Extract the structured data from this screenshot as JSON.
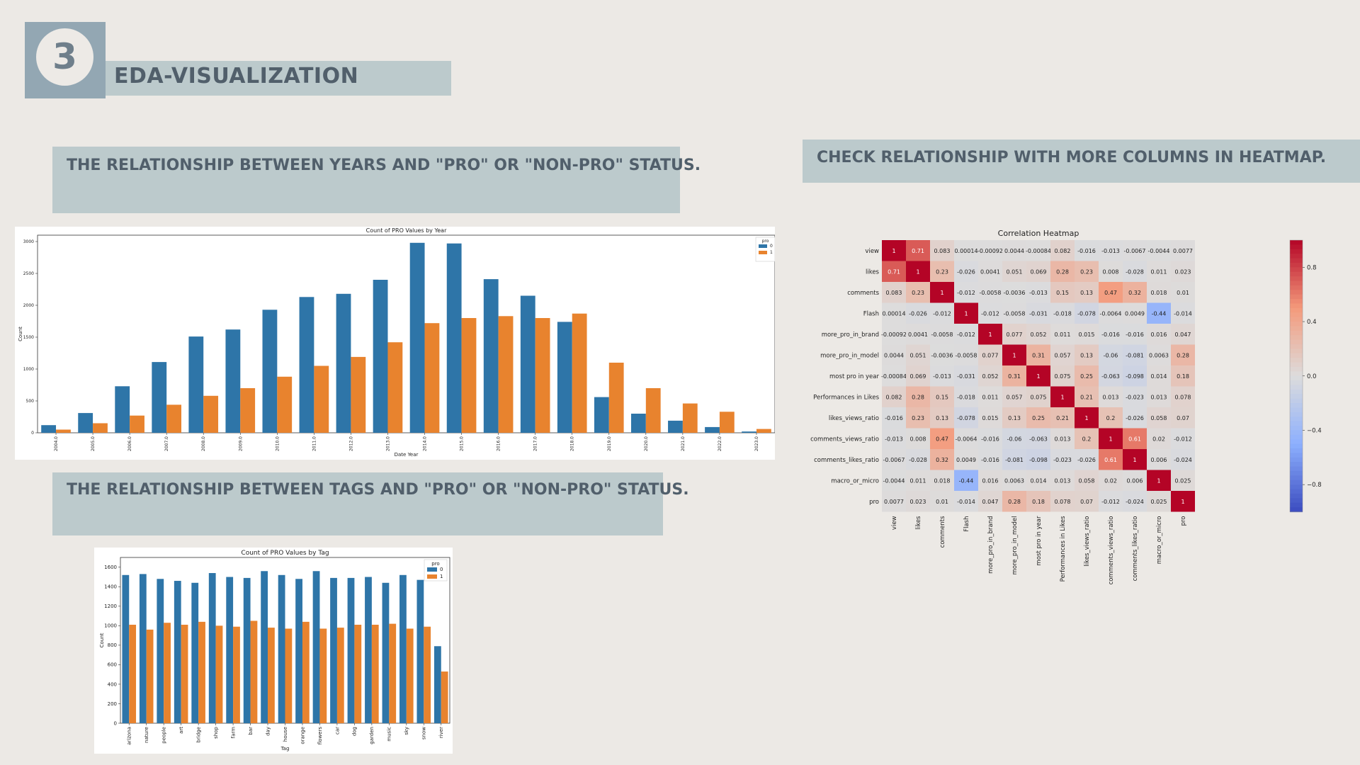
{
  "slide": {
    "section_number": "3",
    "title": "EDA-VISUALIZATION",
    "heading_years": "THE RELATIONSHIP BETWEEN YEARS AND \"PRO\" OR \"NON-PRO\" STATUS.",
    "heading_tags": "THE RELATIONSHIP BETWEEN TAGS AND \"PRO\" OR \"NON-PRO\" STATUS.",
    "heading_heatmap": "CHECK RELATIONSHIP  WITH MORE COLUMNS  IN HEATMAP."
  },
  "colors": {
    "pro_0": "#2e75a8",
    "pro_1": "#e8832e"
  },
  "chart_data": [
    {
      "type": "bar",
      "title": "Count of PRO Values by Year",
      "xlabel": "Date Year",
      "ylabel": "Count",
      "ylim": [
        0,
        3100
      ],
      "yticks": [
        0,
        500,
        1000,
        1500,
        2000,
        2500,
        3000
      ],
      "legend": {
        "title": "pro",
        "placement": "top-right"
      },
      "categories": [
        "2004.0",
        "2005.0",
        "2006.0",
        "2007.0",
        "2008.0",
        "2009.0",
        "2010.0",
        "2011.0",
        "2012.0",
        "2013.0",
        "2014.0",
        "2015.0",
        "2016.0",
        "2017.0",
        "2018.0",
        "2019.0",
        "2020.0",
        "2021.0",
        "2022.0",
        "2023.0"
      ],
      "series": [
        {
          "name": "0",
          "values": [
            120,
            310,
            730,
            1110,
            1510,
            1620,
            1930,
            2130,
            2180,
            2400,
            2980,
            2970,
            2410,
            2150,
            1740,
            560,
            300,
            190,
            90,
            20
          ]
        },
        {
          "name": "1",
          "values": [
            50,
            150,
            270,
            440,
            580,
            700,
            880,
            1050,
            1190,
            1420,
            1720,
            1800,
            1830,
            1800,
            1870,
            1100,
            700,
            460,
            330,
            60
          ]
        }
      ]
    },
    {
      "type": "bar",
      "title": "Count of PRO Values by Tag",
      "xlabel": "Tag",
      "ylabel": "Count",
      "ylim": [
        0,
        1700
      ],
      "yticks": [
        0,
        200,
        400,
        600,
        800,
        1000,
        1200,
        1400,
        1600
      ],
      "legend": {
        "title": "pro",
        "placement": "top-right"
      },
      "categories": [
        "arizona",
        "nature",
        "people",
        "art",
        "bridge",
        "shop",
        "farm",
        "bar",
        "day",
        "house",
        "orange",
        "flowers",
        "car",
        "dog",
        "garden",
        "music",
        "sky",
        "snow",
        "river"
      ],
      "series": [
        {
          "name": "0",
          "values": [
            1520,
            1530,
            1480,
            1460,
            1440,
            1540,
            1500,
            1490,
            1560,
            1520,
            1480,
            1560,
            1490,
            1490,
            1500,
            1440,
            1520,
            1470,
            790
          ]
        },
        {
          "name": "1",
          "values": [
            1010,
            960,
            1030,
            1010,
            1040,
            1000,
            990,
            1050,
            980,
            970,
            1040,
            970,
            980,
            1010,
            1010,
            1020,
            970,
            990,
            530
          ]
        }
      ]
    },
    {
      "type": "heatmap",
      "title": "Correlation Heatmap",
      "labels": [
        "view",
        "likes",
        "comments",
        "Flash",
        "more_pro_in_brand",
        "more_pro_in_model",
        "most pro in year",
        "Performances in Likes",
        "likes_views_ratio",
        "comments_views_ratio",
        "comments_likes_ratio",
        "macro_or_micro",
        "pro"
      ],
      "matrix": [
        [
          1,
          0.71,
          0.083,
          0.00014,
          -0.00092,
          0.0044,
          -0.00084,
          0.082,
          -0.016,
          -0.013,
          -0.0067,
          -0.0044,
          0.0077
        ],
        [
          0.71,
          1,
          0.23,
          -0.026,
          0.0041,
          0.051,
          0.069,
          0.28,
          0.23,
          0.008,
          -0.028,
          0.011,
          0.023
        ],
        [
          0.083,
          0.23,
          1,
          -0.012,
          -0.0058,
          -0.0036,
          -0.013,
          0.15,
          0.13,
          0.47,
          0.32,
          0.018,
          0.01
        ],
        [
          0.00014,
          -0.026,
          -0.012,
          1,
          -0.012,
          -0.0058,
          -0.031,
          -0.018,
          -0.078,
          -0.0064,
          0.0049,
          -0.44,
          -0.014
        ],
        [
          -0.00092,
          0.0041,
          -0.0058,
          -0.012,
          1,
          0.077,
          0.052,
          0.011,
          0.015,
          -0.016,
          -0.016,
          0.016,
          0.047
        ],
        [
          0.0044,
          0.051,
          -0.0036,
          -0.0058,
          0.077,
          1,
          0.31,
          0.057,
          0.13,
          -0.06,
          -0.081,
          0.0063,
          0.28
        ],
        [
          -0.00084,
          0.069,
          -0.013,
          -0.031,
          0.052,
          0.31,
          1,
          0.075,
          0.25,
          -0.063,
          -0.098,
          0.014,
          0.18
        ],
        [
          0.082,
          0.28,
          0.15,
          -0.018,
          0.011,
          0.057,
          0.075,
          1,
          0.21,
          0.013,
          -0.023,
          0.013,
          0.078
        ],
        [
          -0.016,
          0.23,
          0.13,
          -0.078,
          0.015,
          0.13,
          0.25,
          0.21,
          1,
          0.2,
          -0.026,
          0.058,
          0.07
        ],
        [
          -0.013,
          0.008,
          0.47,
          -0.0064,
          -0.016,
          -0.06,
          -0.063,
          0.013,
          0.2,
          1,
          0.61,
          0.02,
          -0.012
        ],
        [
          -0.0067,
          -0.028,
          0.32,
          0.0049,
          -0.016,
          -0.081,
          -0.098,
          -0.023,
          -0.026,
          0.61,
          1,
          0.006,
          -0.024
        ],
        [
          -0.0044,
          0.011,
          0.018,
          -0.44,
          0.016,
          0.0063,
          0.014,
          0.013,
          0.058,
          0.02,
          0.006,
          1,
          0.025
        ],
        [
          0.0077,
          0.023,
          0.01,
          -0.014,
          0.047,
          0.28,
          0.18,
          0.078,
          0.07,
          -0.012,
          -0.024,
          0.025,
          1
        ]
      ],
      "colorbar_ticks": [
        0.8,
        0.4,
        0.0,
        -0.4,
        -0.8
      ],
      "colorbar_tick_labels": [
        "0.8",
        "0.4",
        "0.0",
        "−0.4",
        "−0.8"
      ],
      "color_range": [
        -1,
        1
      ]
    }
  ]
}
